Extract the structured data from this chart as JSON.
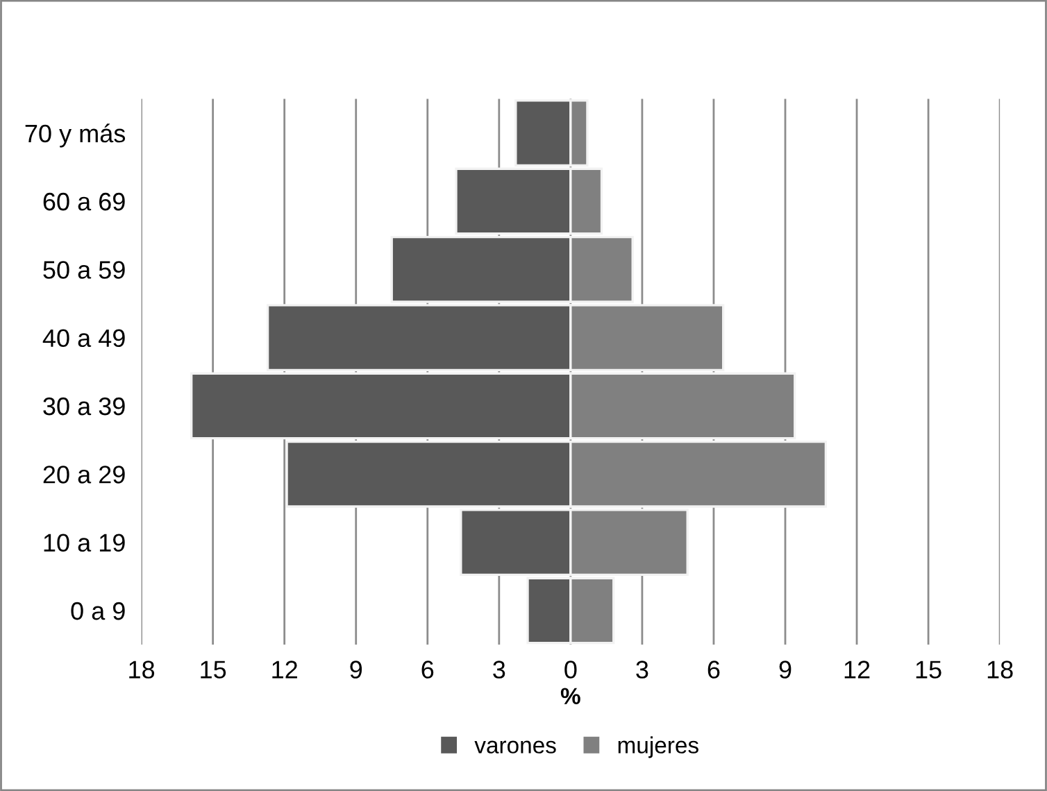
{
  "chart_data": {
    "type": "bar",
    "orientation": "horizontal",
    "stacked": true,
    "xlabel": "%",
    "categories": [
      "70 y más",
      "60 a 69",
      "50 a 59",
      "40 a 49",
      "30 a 39",
      "20 a 29",
      "10 a 19",
      "0 a 9"
    ],
    "series": [
      {
        "name": "varones",
        "color": "#595959",
        "values": [
          -2.3,
          -4.8,
          -7.5,
          -12.7,
          -15.9,
          -11.9,
          -4.6,
          -1.8
        ]
      },
      {
        "name": "mujeres",
        "color": "#808080",
        "values": [
          0.7,
          1.3,
          2.6,
          6.4,
          9.4,
          10.7,
          4.9,
          1.8
        ]
      }
    ],
    "xlim": [
      -18,
      18
    ],
    "xticks": [
      {
        "value": -18,
        "label": "18"
      },
      {
        "value": -15,
        "label": "15"
      },
      {
        "value": -12,
        "label": "12"
      },
      {
        "value": -9,
        "label": "9"
      },
      {
        "value": -6,
        "label": "6"
      },
      {
        "value": -3,
        "label": "3"
      },
      0,
      3,
      6,
      9,
      12,
      15,
      18
    ],
    "grid": "x",
    "legend": "bottom"
  }
}
